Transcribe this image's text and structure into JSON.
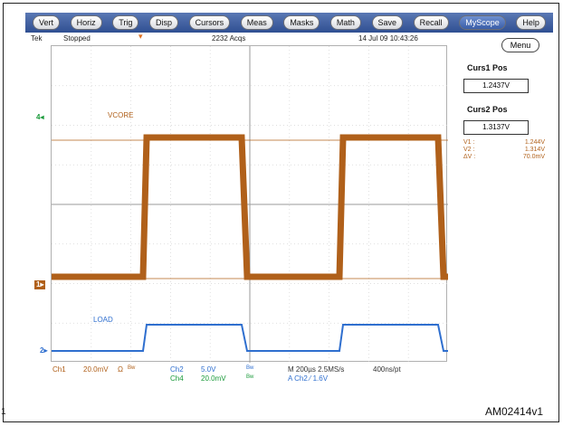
{
  "menu": {
    "items": [
      "Vert",
      "Horiz",
      "Trig",
      "Disp",
      "Cursors",
      "Meas",
      "Masks",
      "Math",
      "Save",
      "Recall",
      "MyScope",
      "Help"
    ],
    "selected": "MyScope"
  },
  "status": {
    "brand": "Tek",
    "state": "Stopped",
    "acqs": "2232 Acqs",
    "datetime": "14 Jul 09 10:43:26"
  },
  "side": {
    "menu_label": "Menu",
    "curs1_title": "Curs1 Pos",
    "curs1_value": "1.2437V",
    "curs2_title": "Curs2 Pos",
    "curs2_value": "1.3137V",
    "readouts": [
      {
        "label": "V1 :",
        "value": "1.244V"
      },
      {
        "label": "V2 :",
        "value": "1.314V"
      },
      {
        "label": "ΔV :",
        "value": "70.0mV"
      }
    ]
  },
  "traces": {
    "vcore_label": "VCORE",
    "load_label": "LOAD",
    "marker_ch4": "4",
    "marker_ch1": "1",
    "marker_ch2": "2"
  },
  "bottom": {
    "ch1": "Ch1",
    "ch1_scale": "20.0mV",
    "ch1_coupling": "Ω",
    "bw1": "Bw",
    "ch2": "Ch2",
    "ch2_scale": "5.0V",
    "ch4": "Ch4",
    "ch4_scale": "20.0mV",
    "bw2": "Bw",
    "bw3": "Bw",
    "timebase": "M 200µs 2.5MS/s",
    "record": "400ns/pt",
    "trigger": "A  Ch2  ⁄  1.6V"
  },
  "figure_id": "AM02414v1",
  "left_edge_label": "1",
  "colors": {
    "vcore": "#b0601a",
    "load": "#2f6fcf",
    "ch2_text": "#1a9a3a",
    "ch1_text": "#b0601a"
  }
}
